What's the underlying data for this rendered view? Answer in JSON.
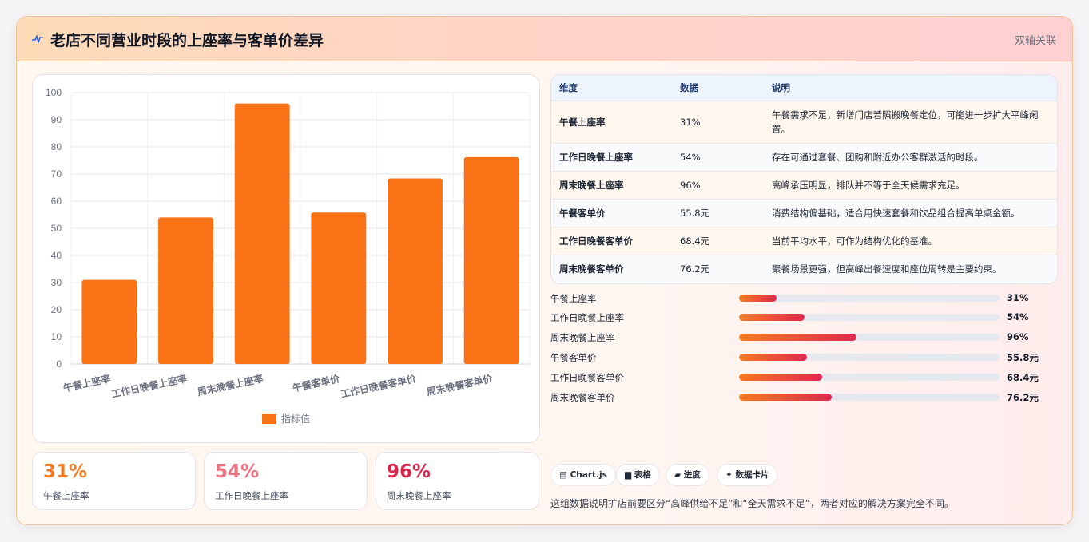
{
  "header": {
    "icon": "pulse-icon",
    "title": "老店不同营业时段的上座率与客单价差异",
    "tag": "双轴关联"
  },
  "colors": {
    "bar": "#f97316",
    "accent_orange": "#f47b22",
    "accent_pink": "#f0717f",
    "accent_crimson": "#d9264a",
    "progress_start": "#f47b22",
    "progress_end": "#e0284f"
  },
  "chart_data": {
    "type": "bar",
    "categories": [
      "午餐上座率",
      "工作日晚餐上座率",
      "周末晚餐上座率",
      "午餐客单价",
      "工作日晚餐客单价",
      "周末晚餐客单价"
    ],
    "series": [
      {
        "name": "指标值",
        "values": [
          31,
          54,
          96,
          55.8,
          68.4,
          76.2
        ]
      }
    ],
    "ylim": [
      0,
      100
    ],
    "yticks": [
      0,
      10,
      20,
      30,
      40,
      50,
      60,
      70,
      80,
      90,
      100
    ],
    "grid": true,
    "legend": "bottom"
  },
  "stats": [
    {
      "value": "31%",
      "label": "午餐上座率",
      "color": "#f47b22"
    },
    {
      "value": "54%",
      "label": "工作日晚餐上座率",
      "color": "#f0717f"
    },
    {
      "value": "96%",
      "label": "周末晚餐上座率",
      "color": "#d9264a"
    }
  ],
  "table": {
    "headers": [
      "维度",
      "数据",
      "说明"
    ],
    "rows": [
      {
        "dim": "午餐上座率",
        "val": "31%",
        "desc": "午餐需求不足，新增门店若照搬晚餐定位，可能进一步扩大平峰闲置。"
      },
      {
        "dim": "工作日晚餐上座率",
        "val": "54%",
        "desc": "存在可通过套餐、团购和附近办公客群激活的时段。"
      },
      {
        "dim": "周末晚餐上座率",
        "val": "96%",
        "desc": "高峰承压明显，排队并不等于全天候需求充足。"
      },
      {
        "dim": "午餐客单价",
        "val": "55.8元",
        "desc": "消费结构偏基础，适合用快速套餐和饮品组合提高单桌金额。"
      },
      {
        "dim": "工作日晚餐客单价",
        "val": "68.4元",
        "desc": "当前平均水平，可作为结构优化的基准。"
      },
      {
        "dim": "周末晚餐客单价",
        "val": "76.2元",
        "desc": "聚餐场景更强，但高峰出餐速度和座位周转是主要约束。"
      }
    ]
  },
  "progress": [
    {
      "label": "午餐上座率",
      "value": "31%",
      "fraction": 0.145
    },
    {
      "label": "工作日晚餐上座率",
      "value": "54%",
      "fraction": 0.253
    },
    {
      "label": "周末晚餐上座率",
      "value": "96%",
      "fraction": 0.45
    },
    {
      "label": "午餐客单价",
      "value": "55.8元",
      "fraction": 0.261
    },
    {
      "label": "工作日晚餐客单价",
      "value": "68.4元",
      "fraction": 0.32
    },
    {
      "label": "周末晚餐客单价",
      "value": "76.2元",
      "fraction": 0.357
    }
  ],
  "chips": [
    {
      "icon": "chart-icon",
      "glyph": "▤",
      "label": "Chart.js"
    },
    {
      "icon": "table-icon",
      "glyph": "▆",
      "label": "表格"
    },
    {
      "icon": "progress-icon",
      "glyph": "▰",
      "label": "进度"
    },
    {
      "icon": "sparkle-icon",
      "glyph": "✦",
      "label": "数据卡片"
    }
  ],
  "footnote": "这组数据说明扩店前要区分“高峰供给不足”和“全天需求不足”，两者对应的解决方案完全不同。"
}
